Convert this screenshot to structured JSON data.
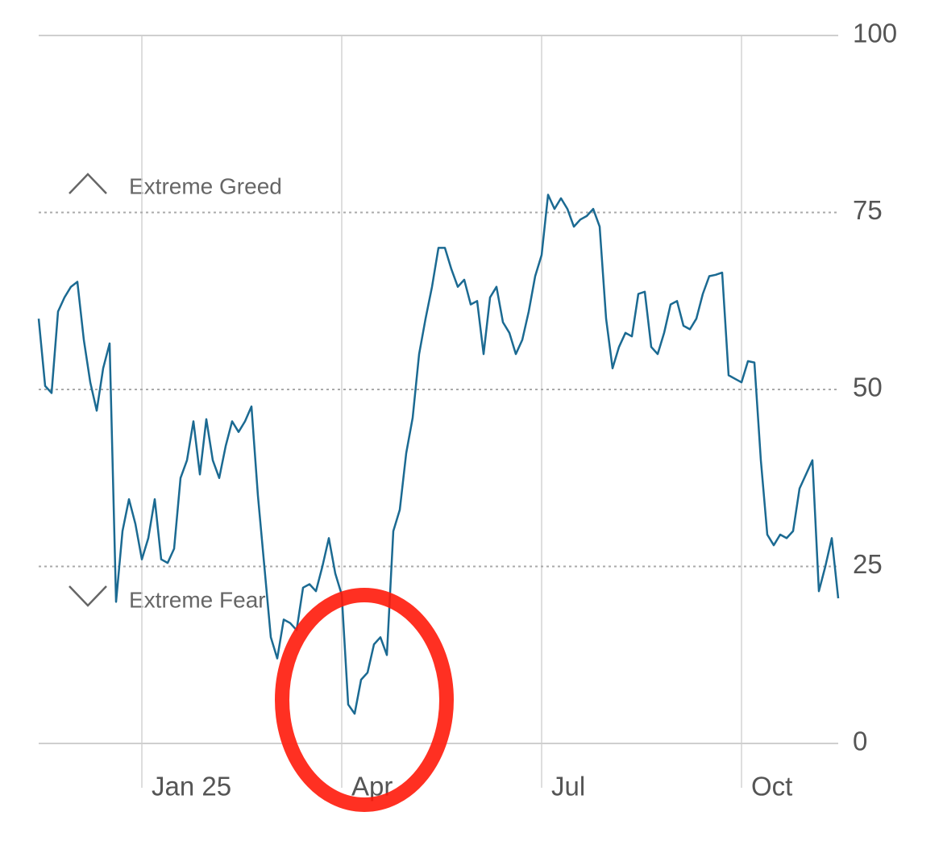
{
  "chart_data": {
    "type": "line",
    "annotations": [
      "Extreme Greed",
      "Extreme Fear"
    ],
    "categories": [
      null,
      null,
      null,
      null,
      null,
      null,
      null,
      null,
      null,
      null,
      null,
      null,
      null,
      null,
      null,
      null,
      "Jan 25",
      null,
      null,
      null,
      null,
      null,
      null,
      null,
      null,
      null,
      null,
      null,
      null,
      null,
      null,
      null,
      null,
      null,
      null,
      null,
      null,
      null,
      null,
      null,
      null,
      null,
      null,
      null,
      null,
      null,
      null,
      "Apr",
      null,
      null,
      null,
      null,
      null,
      null,
      null,
      null,
      null,
      null,
      null,
      null,
      null,
      null,
      null,
      null,
      null,
      null,
      null,
      null,
      null,
      null,
      null,
      null,
      null,
      null,
      null,
      null,
      null,
      null,
      "Jul",
      null,
      null,
      null,
      null,
      null,
      null,
      null,
      null,
      null,
      null,
      null,
      null,
      null,
      null,
      null,
      null,
      null,
      null,
      null,
      null,
      null,
      null,
      null,
      null,
      null,
      null,
      null,
      null,
      null,
      null,
      "Oct",
      null,
      null,
      null,
      null,
      null,
      null,
      null,
      null,
      null,
      null,
      null,
      null,
      null,
      null,
      null
    ],
    "values": [
      60,
      50.5,
      49.5,
      61,
      63,
      64.5,
      65.2,
      57,
      51,
      47,
      53,
      56.5,
      20,
      30,
      34.5,
      31,
      26,
      29,
      34.5,
      26,
      25.5,
      27.5,
      37.5,
      40,
      45.5,
      38,
      45.8,
      40,
      37.5,
      42,
      45.5,
      44,
      45.5,
      47.6,
      35,
      25,
      15,
      12,
      17.5,
      17,
      16,
      22,
      22.5,
      21.5,
      25,
      29,
      24,
      21,
      5.5,
      4.2,
      9,
      10,
      14,
      15,
      12.5,
      30,
      33,
      41,
      46,
      55,
      60,
      64.5,
      70,
      70,
      67,
      64.5,
      65.5,
      62,
      62.5,
      55,
      63,
      64.5,
      59.5,
      58,
      55,
      57,
      61,
      66,
      69,
      77.5,
      75.5,
      77,
      75.5,
      73,
      74,
      74.5,
      75.5,
      73,
      60,
      53,
      56,
      58,
      57.5,
      63.5,
      63.8,
      56,
      55,
      58,
      62,
      62.5,
      59,
      58.5,
      60,
      63.5,
      66,
      66.2,
      66.5,
      52,
      51.5,
      51,
      54,
      53.8,
      40,
      29.5,
      28,
      29.5,
      29,
      30,
      36,
      38,
      40,
      21.5,
      25,
      29,
      20.5
    ],
    "color": "#1b6a92",
    "ylim": [
      0,
      100
    ],
    "yticks": [
      0,
      25,
      50,
      75,
      100
    ],
    "grid": true
  }
}
